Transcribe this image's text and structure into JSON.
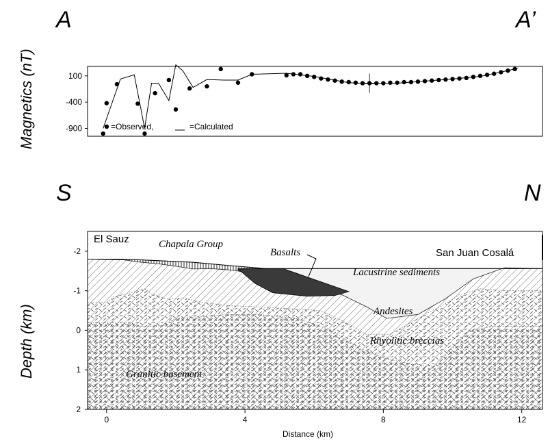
{
  "section_labels": {
    "a": "A",
    "a_prime": "A’",
    "s": "S",
    "n": "N"
  },
  "magnetics": {
    "ylabel": "Magnetics (nT)",
    "yticks": [
      100,
      -400,
      -900
    ],
    "ylim": [
      -1050,
      280
    ],
    "legend_observed": "=Observed,",
    "legend_calculated": "=Calculated",
    "observed": [
      [
        -0.1,
        -1000
      ],
      [
        0.0,
        -420
      ],
      [
        0.3,
        -60
      ],
      [
        0.9,
        -430
      ],
      [
        1.1,
        -1000
      ],
      [
        1.4,
        -230
      ],
      [
        1.8,
        20
      ],
      [
        2.0,
        -540
      ],
      [
        2.4,
        -140
      ],
      [
        2.9,
        -100
      ],
      [
        3.3,
        230
      ],
      [
        3.8,
        -30
      ],
      [
        4.2,
        130
      ],
      [
        5.2,
        110
      ],
      [
        5.4,
        130
      ],
      [
        5.6,
        130
      ],
      [
        5.8,
        100
      ],
      [
        6.0,
        80
      ],
      [
        6.2,
        50
      ],
      [
        6.4,
        30
      ],
      [
        6.6,
        10
      ],
      [
        6.8,
        -10
      ],
      [
        7.0,
        -20
      ],
      [
        7.2,
        -30
      ],
      [
        7.4,
        -40
      ],
      [
        7.6,
        -40
      ],
      [
        7.8,
        -40
      ],
      [
        8.0,
        -40
      ],
      [
        8.2,
        -30
      ],
      [
        8.4,
        -30
      ],
      [
        8.6,
        -20
      ],
      [
        8.8,
        -20
      ],
      [
        9.0,
        -10
      ],
      [
        9.2,
        0
      ],
      [
        9.4,
        10
      ],
      [
        9.6,
        20
      ],
      [
        9.8,
        30
      ],
      [
        10.0,
        40
      ],
      [
        10.2,
        50
      ],
      [
        10.4,
        60
      ],
      [
        10.6,
        80
      ],
      [
        10.8,
        100
      ],
      [
        11.0,
        120
      ],
      [
        11.2,
        140
      ],
      [
        11.4,
        170
      ],
      [
        11.6,
        200
      ],
      [
        11.8,
        230
      ]
    ],
    "calculated": [
      [
        -0.1,
        -900
      ],
      [
        0.4,
        40
      ],
      [
        0.8,
        120
      ],
      [
        1.1,
        -900
      ],
      [
        1.3,
        -40
      ],
      [
        1.5,
        -40
      ],
      [
        1.8,
        -370
      ],
      [
        2.0,
        310
      ],
      [
        2.2,
        200
      ],
      [
        2.5,
        -120
      ],
      [
        2.9,
        30
      ],
      [
        3.4,
        20
      ],
      [
        3.8,
        20
      ],
      [
        4.2,
        130
      ],
      [
        5.2,
        150
      ],
      [
        6.0,
        90
      ],
      [
        7.0,
        -30
      ],
      [
        7.6,
        -50
      ],
      [
        8.4,
        -40
      ],
      [
        9.2,
        0
      ],
      [
        10.0,
        40
      ],
      [
        10.8,
        90
      ],
      [
        11.6,
        200
      ],
      [
        11.9,
        250
      ]
    ],
    "marked_station": [
      7.6,
      -40
    ]
  },
  "section": {
    "ylabel": "Depth (km)",
    "xlabel": "Distance (km)",
    "xticks": [
      0,
      4,
      8,
      12
    ],
    "yticks": [
      -2,
      -1,
      0,
      1,
      2
    ],
    "xlim": [
      -0.55,
      12.6
    ],
    "ylim": [
      -2.5,
      2.0
    ],
    "place_left": "El Sauz",
    "place_right": "San Juan Cosalá",
    "units": {
      "chapala": "Chapala Group",
      "basalts": "Basalts",
      "lacustrine": "Lacustrine sediments",
      "andesites": "Andesites",
      "rhyolitic": "Rhyolitic breccias",
      "granitic": "Granitic basement"
    },
    "topo": [
      [
        -0.55,
        -1.8
      ],
      [
        0.5,
        -1.8
      ],
      [
        1.5,
        -1.76
      ],
      [
        2.5,
        -1.72
      ],
      [
        3.5,
        -1.64
      ],
      [
        4.6,
        -1.56
      ],
      [
        12.6,
        -1.56
      ]
    ],
    "chapala_base": [
      [
        -0.55,
        -1.8
      ],
      [
        0.5,
        -1.78
      ],
      [
        1.0,
        -1.72
      ],
      [
        1.5,
        -1.68
      ],
      [
        2.0,
        -1.62
      ],
      [
        2.5,
        -1.55
      ],
      [
        3.0,
        -1.56
      ],
      [
        3.5,
        -1.53
      ],
      [
        3.8,
        -1.5
      ],
      [
        4.4,
        -1.5
      ]
    ],
    "andesite_top": [
      [
        -0.55,
        -1.8
      ],
      [
        0.5,
        -1.78
      ],
      [
        1.0,
        -1.72
      ],
      [
        1.5,
        -1.68
      ],
      [
        2.0,
        -1.62
      ],
      [
        2.5,
        -1.55
      ],
      [
        3.0,
        -1.56
      ],
      [
        3.5,
        -1.53
      ],
      [
        3.8,
        -1.5
      ],
      [
        4.6,
        -1.32
      ],
      [
        5.8,
        -1.07
      ],
      [
        6.8,
        -0.9
      ],
      [
        7.5,
        -0.6
      ],
      [
        8.1,
        -0.3
      ],
      [
        9.0,
        -0.4
      ],
      [
        9.8,
        -0.8
      ],
      [
        10.6,
        -1.3
      ],
      [
        11.5,
        -1.58
      ],
      [
        12.6,
        -1.56
      ]
    ],
    "basalt_poly": [
      [
        3.8,
        -1.55
      ],
      [
        5.1,
        -1.56
      ],
      [
        7.0,
        -0.98
      ],
      [
        6.6,
        -0.88
      ],
      [
        5.8,
        -0.86
      ],
      [
        4.8,
        -0.95
      ],
      [
        4.3,
        -1.18
      ]
    ],
    "rhyolitic_top": [
      [
        -0.55,
        -0.7
      ],
      [
        0.0,
        -0.7
      ],
      [
        0.2,
        -0.85
      ],
      [
        0.7,
        -0.95
      ],
      [
        1.1,
        -1.05
      ],
      [
        1.3,
        -0.92
      ],
      [
        1.8,
        -0.78
      ],
      [
        2.2,
        -0.82
      ],
      [
        2.8,
        -0.7
      ],
      [
        3.6,
        -0.62
      ],
      [
        4.2,
        -0.6
      ],
      [
        5.2,
        -0.55
      ],
      [
        6.2,
        -0.5
      ],
      [
        6.8,
        -0.25
      ],
      [
        7.5,
        0.1
      ],
      [
        8.2,
        0.1
      ],
      [
        8.8,
        -0.2
      ],
      [
        9.3,
        -0.45
      ],
      [
        9.7,
        -0.62
      ],
      [
        10.2,
        -0.9
      ],
      [
        10.8,
        -1.05
      ],
      [
        11.6,
        -1.0
      ],
      [
        12.6,
        -1.0
      ]
    ],
    "granite_top": [
      [
        -0.55,
        -0.2
      ],
      [
        0.5,
        -0.2
      ],
      [
        1.0,
        -0.1
      ],
      [
        1.6,
        -0.12
      ],
      [
        2.0,
        -0.3
      ],
      [
        2.8,
        -0.35
      ],
      [
        3.5,
        -0.4
      ],
      [
        4.4,
        -0.4
      ],
      [
        5.5,
        -0.3
      ],
      [
        6.5,
        0.0
      ],
      [
        7.2,
        0.4
      ],
      [
        8.0,
        0.7
      ],
      [
        8.8,
        0.85
      ],
      [
        9.5,
        0.92
      ],
      [
        9.9,
        0.55
      ],
      [
        10.5,
        0.0
      ],
      [
        11.2,
        -0.1
      ],
      [
        12.6,
        -0.1
      ]
    ]
  }
}
